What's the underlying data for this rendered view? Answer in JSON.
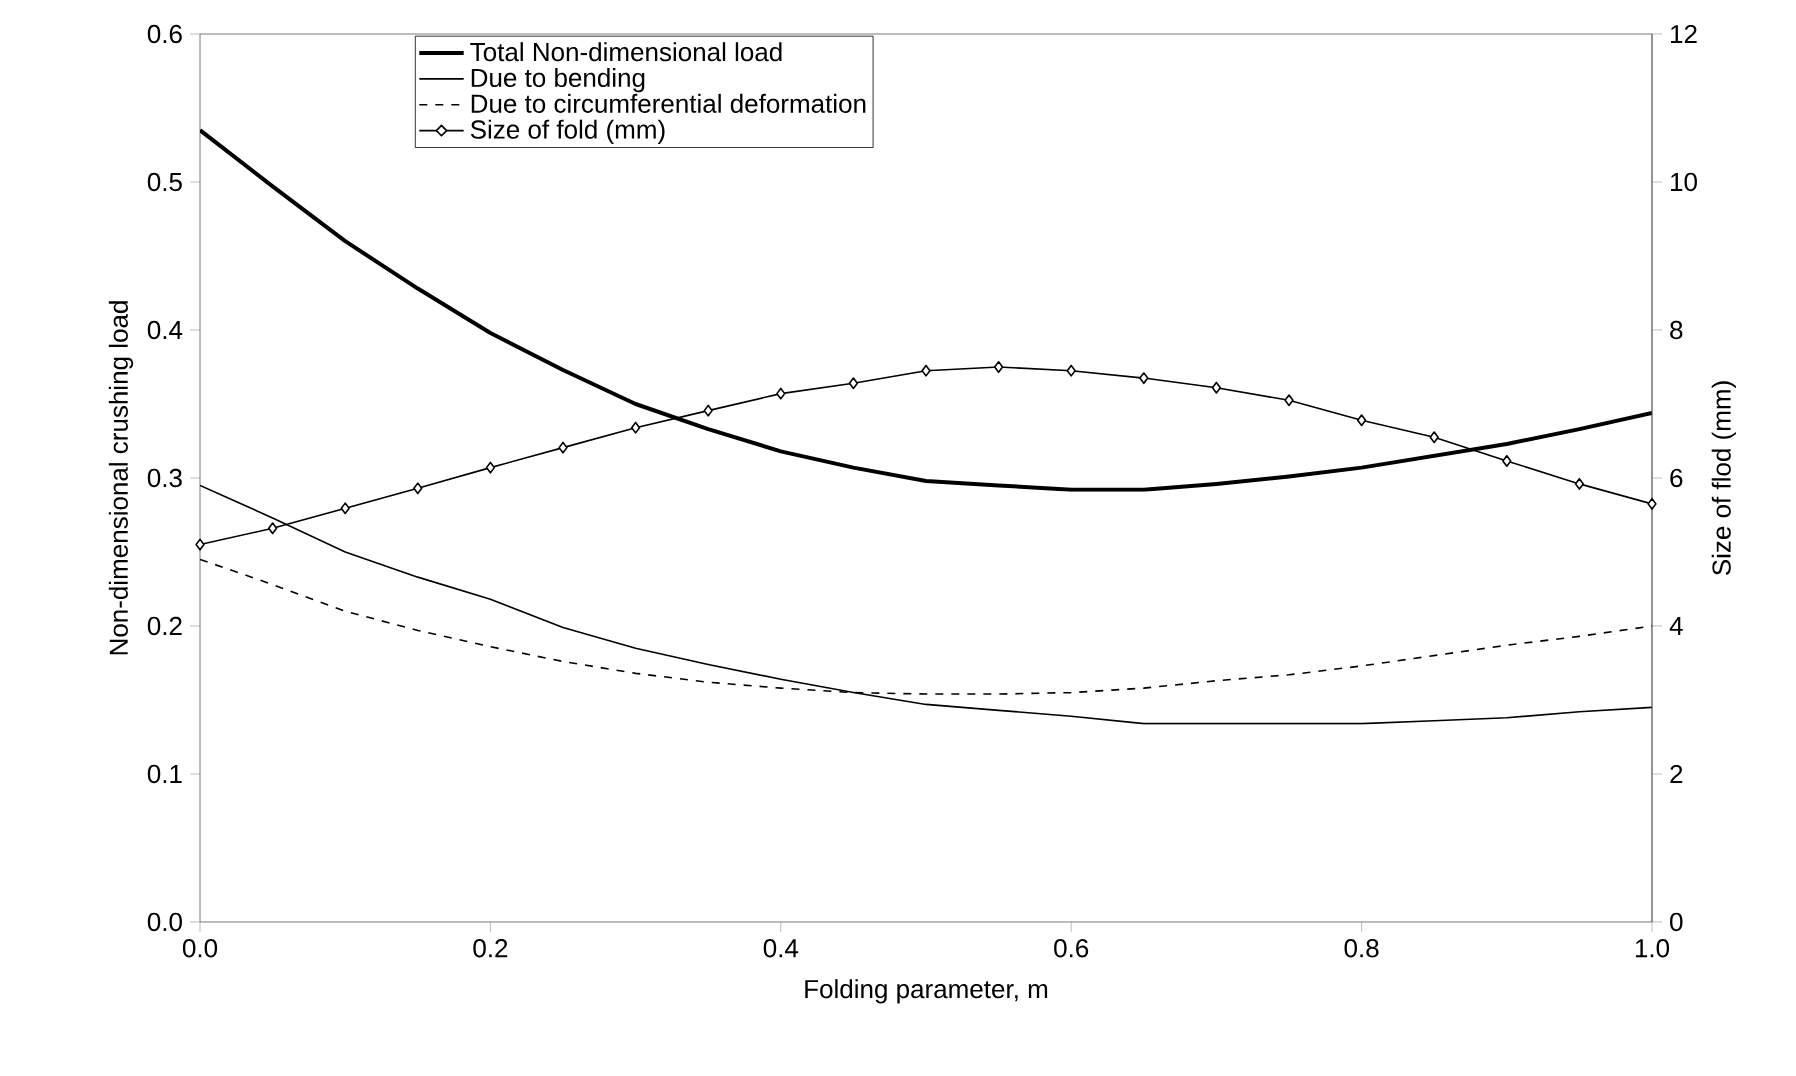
{
  "chart_data": {
    "type": "line",
    "xlabel": "Folding parameter, m",
    "ylabel": "Non-dimensional crushing load",
    "y2label": "Size of flod (mm)",
    "x": [
      0,
      0.05,
      0.1,
      0.15,
      0.2,
      0.25,
      0.3,
      0.35,
      0.4,
      0.45,
      0.5,
      0.55,
      0.6,
      0.65,
      0.7,
      0.75,
      0.8,
      0.85,
      0.9,
      0.95,
      1.0
    ],
    "series": [
      {
        "name": "Total Non-dimensional load",
        "color": "#000000",
        "line_style": "solid",
        "marker": "none",
        "values": [
          0.535,
          0.497,
          0.46,
          0.428,
          0.398,
          0.373,
          0.35,
          0.333,
          0.318,
          0.307,
          0.298,
          0.295,
          0.292,
          0.292,
          0.296,
          0.301,
          0.307,
          0.315,
          0.323,
          0.333,
          0.344
        ]
      },
      {
        "name": "Due to bending",
        "color": "#000000",
        "line_style": "solid",
        "marker": "none",
        "values": [
          0.295,
          0.273,
          0.25,
          0.233,
          0.218,
          0.199,
          0.185,
          0.174,
          0.164,
          0.155,
          0.147,
          0.143,
          0.139,
          0.134,
          0.134,
          0.134,
          0.134,
          0.136,
          0.138,
          0.142,
          0.145
        ]
      },
      {
        "name": "Due to circumferential deformation",
        "color": "#000000",
        "line_style": "dashed",
        "marker": "none",
        "values": [
          0.245,
          0.228,
          0.21,
          0.197,
          0.186,
          0.176,
          0.168,
          0.162,
          0.158,
          0.155,
          0.154,
          0.154,
          0.155,
          0.158,
          0.163,
          0.167,
          0.173,
          0.18,
          0.187,
          0.193,
          0.2
        ]
      },
      {
        "name": "Size of fold (mm)",
        "color": "#000000",
        "line_style": "solid",
        "marker": "diamond",
        "axis": "y2",
        "values": [
          5.1,
          5.32,
          5.59,
          5.86,
          6.14,
          6.41,
          6.68,
          6.91,
          7.14,
          7.28,
          7.45,
          7.5,
          7.45,
          7.35,
          7.22,
          7.05,
          6.78,
          6.55,
          6.23,
          5.92,
          5.65
        ]
      }
    ],
    "xlim": [
      0,
      1.0
    ],
    "xticks": [
      {
        "value": 0,
        "label": "0.0"
      },
      0.2,
      0.4,
      0.6,
      0.8,
      {
        "value": 1.0,
        "label": "1.0"
      }
    ],
    "ylim": [
      0,
      0.6
    ],
    "yticks": [
      {
        "value": 0,
        "label": "0.0"
      },
      0.1,
      0.2,
      0.3,
      0.4,
      0.5,
      0.6
    ],
    "y2lim": [
      0,
      12
    ],
    "y2ticks": [
      0,
      2,
      4,
      6,
      8,
      10,
      12
    ],
    "grid": false,
    "legend": "top"
  }
}
